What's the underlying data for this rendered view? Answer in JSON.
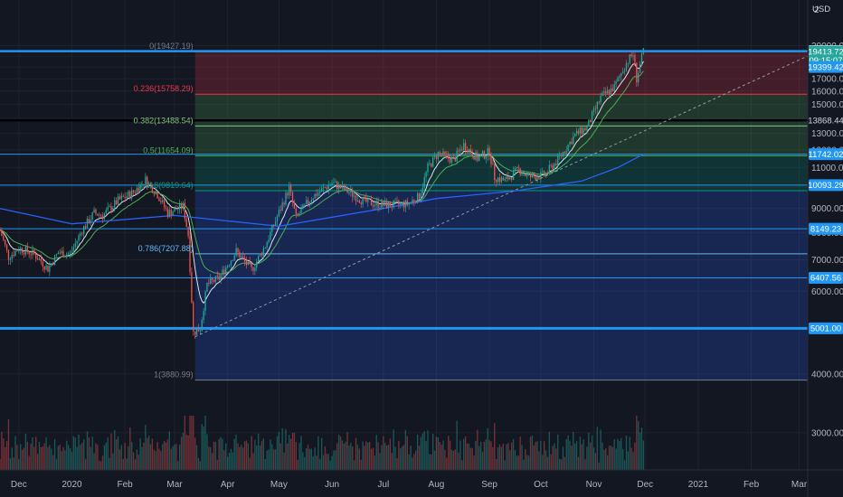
{
  "chart_data": {
    "type": "candlestick",
    "currency": "USD",
    "y_scale": "log",
    "ylim": [
      2500,
      25000
    ],
    "y_ticks": [
      3000,
      4000,
      5000,
      6000,
      7000,
      8000,
      9000,
      10000,
      11000,
      12000,
      13000,
      14000,
      15000,
      16000,
      17000,
      18000,
      19000,
      20000
    ],
    "y_tick_labels": [
      "3000.00",
      "4000.00",
      "5000.00",
      "6000.00",
      "7000.00",
      "8000.00",
      "9000.00",
      "10000.00",
      "11000.00",
      "12000.00",
      "13000.00",
      "14000.00",
      "15000.00",
      "16000.00",
      "17000.00",
      "18000.00",
      "19000.00",
      "20000.00"
    ],
    "top_tick_label": "2",
    "xlim": [
      "2019-11-20",
      "2021-03-06"
    ],
    "x_ticks": [
      {
        "date": "2019-12-01",
        "label": "Dec"
      },
      {
        "date": "2020-01-01",
        "label": "2020"
      },
      {
        "date": "2020-02-01",
        "label": "Feb"
      },
      {
        "date": "2020-03-01",
        "label": "Mar"
      },
      {
        "date": "2020-04-01",
        "label": "Apr"
      },
      {
        "date": "2020-05-01",
        "label": "May"
      },
      {
        "date": "2020-06-01",
        "label": "Jun"
      },
      {
        "date": "2020-07-01",
        "label": "Jul"
      },
      {
        "date": "2020-08-01",
        "label": "Aug"
      },
      {
        "date": "2020-09-01",
        "label": "Sep"
      },
      {
        "date": "2020-10-01",
        "label": "Oct"
      },
      {
        "date": "2020-11-01",
        "label": "Nov"
      },
      {
        "date": "2020-12-01",
        "label": "Dec"
      },
      {
        "date": "2021-01-01",
        "label": "2021"
      },
      {
        "date": "2021-02-01",
        "label": "Feb"
      },
      {
        "date": "2021-03-01",
        "label": "Mar"
      }
    ],
    "price_path": [
      {
        "date": "2019-11-20",
        "close": 8100
      },
      {
        "date": "2019-11-25",
        "close": 7100
      },
      {
        "date": "2019-12-01",
        "close": 7400
      },
      {
        "date": "2019-12-10",
        "close": 7200
      },
      {
        "date": "2019-12-18",
        "close": 6700
      },
      {
        "date": "2019-12-24",
        "close": 7250
      },
      {
        "date": "2019-12-31",
        "close": 7200
      },
      {
        "date": "2020-01-07",
        "close": 8100
      },
      {
        "date": "2020-01-14",
        "close": 8800
      },
      {
        "date": "2020-01-19",
        "close": 8700
      },
      {
        "date": "2020-01-28",
        "close": 9350
      },
      {
        "date": "2020-02-06",
        "close": 9750
      },
      {
        "date": "2020-02-13",
        "close": 10350
      },
      {
        "date": "2020-02-20",
        "close": 9650
      },
      {
        "date": "2020-02-26",
        "close": 8800
      },
      {
        "date": "2020-03-06",
        "close": 9100
      },
      {
        "date": "2020-03-09",
        "close": 7900
      },
      {
        "date": "2020-03-12",
        "close": 4900
      },
      {
        "date": "2020-03-16",
        "close": 5000
      },
      {
        "date": "2020-03-20",
        "close": 6200
      },
      {
        "date": "2020-03-27",
        "close": 6400
      },
      {
        "date": "2020-04-06",
        "close": 7300
      },
      {
        "date": "2020-04-15",
        "close": 6650
      },
      {
        "date": "2020-04-23",
        "close": 7500
      },
      {
        "date": "2020-04-30",
        "close": 8650
      },
      {
        "date": "2020-05-07",
        "close": 9950
      },
      {
        "date": "2020-05-11",
        "close": 8600
      },
      {
        "date": "2020-05-20",
        "close": 9500
      },
      {
        "date": "2020-06-01",
        "close": 10200
      },
      {
        "date": "2020-06-10",
        "close": 9800
      },
      {
        "date": "2020-06-20",
        "close": 9300
      },
      {
        "date": "2020-07-01",
        "close": 9150
      },
      {
        "date": "2020-07-15",
        "close": 9200
      },
      {
        "date": "2020-07-22",
        "close": 9550
      },
      {
        "date": "2020-07-27",
        "close": 11000
      },
      {
        "date": "2020-08-02",
        "close": 11800
      },
      {
        "date": "2020-08-11",
        "close": 11400
      },
      {
        "date": "2020-08-17",
        "close": 12300
      },
      {
        "date": "2020-08-25",
        "close": 11500
      },
      {
        "date": "2020-09-01",
        "close": 11900
      },
      {
        "date": "2020-09-04",
        "close": 10500
      },
      {
        "date": "2020-09-10",
        "close": 10300
      },
      {
        "date": "2020-09-18",
        "close": 10900
      },
      {
        "date": "2020-09-24",
        "close": 10500
      },
      {
        "date": "2020-10-03",
        "close": 10600
      },
      {
        "date": "2020-10-10",
        "close": 11300
      },
      {
        "date": "2020-10-21",
        "close": 12900
      },
      {
        "date": "2020-10-28",
        "close": 13400
      },
      {
        "date": "2020-11-05",
        "close": 15500
      },
      {
        "date": "2020-11-13",
        "close": 16300
      },
      {
        "date": "2020-11-18",
        "close": 17800
      },
      {
        "date": "2020-11-21",
        "close": 18600
      },
      {
        "date": "2020-11-24",
        "close": 19200
      },
      {
        "date": "2020-11-26",
        "close": 17000
      },
      {
        "date": "2020-11-28",
        "close": 18200
      },
      {
        "date": "2020-11-30",
        "close": 19413.72
      }
    ],
    "moving_average": {
      "color": "#2962ff",
      "points": [
        {
          "date": "2019-11-20",
          "value": 9000
        },
        {
          "date": "2020-01-01",
          "value": 8350
        },
        {
          "date": "2020-03-01",
          "value": 8700
        },
        {
          "date": "2020-05-01",
          "value": 8250
        },
        {
          "date": "2020-07-01",
          "value": 9000
        },
        {
          "date": "2020-08-01",
          "value": 9450
        },
        {
          "date": "2020-09-15",
          "value": 9800
        },
        {
          "date": "2020-10-25",
          "value": 10300
        },
        {
          "date": "2020-11-15",
          "value": 11000
        },
        {
          "date": "2020-11-30",
          "value": 11742.02
        }
      ]
    },
    "fibonacci": {
      "start_date": "2020-03-13",
      "end_date": "2021-03-06",
      "levels": [
        {
          "ratio": 0,
          "label": "0(19427.19)",
          "price": 19427.19,
          "color": "#787b86",
          "fill": "#f23645"
        },
        {
          "ratio": 0.236,
          "label": "0.236(15758.29)",
          "price": 15758.29,
          "color": "#f23645",
          "fill": "#4caf50"
        },
        {
          "ratio": 0.382,
          "label": "0.382(13488.54)",
          "price": 13488.54,
          "color": "#81c784",
          "fill": "#4caf50"
        },
        {
          "ratio": 0.5,
          "label": "0.5(11654.09)",
          "price": 11654.09,
          "color": "#4caf50",
          "fill": "#089981"
        },
        {
          "ratio": 0.618,
          "label": "0.618(9819.64)",
          "price": 9819.64,
          "color": "#089981",
          "fill": "#2962ff"
        },
        {
          "ratio": 0.786,
          "label": "0.786(7207.88)",
          "price": 7207.88,
          "color": "#64b5f6",
          "fill": "#2962ff"
        },
        {
          "ratio": 1,
          "label": "1(3880.99)",
          "price": 3880.99,
          "color": "#787b86",
          "fill": ""
        }
      ]
    },
    "horizontal_lines": [
      {
        "price": 19456.89,
        "color": "#2196f3",
        "width": 2.5
      },
      {
        "price": 13868.44,
        "color": "#000000",
        "width": 2.5
      },
      {
        "price": 11742.02,
        "color": "#2196f3",
        "width": 1
      },
      {
        "price": 10093.29,
        "color": "#2196f3",
        "width": 1
      },
      {
        "price": 8149.23,
        "color": "#2196f3",
        "width": 1
      },
      {
        "price": 6407.56,
        "color": "#2196f3",
        "width": 1
      },
      {
        "price": 5001.0,
        "color": "#2196f3",
        "width": 3
      }
    ],
    "price_tags": [
      {
        "price": 19456.89,
        "label": "19456.89",
        "bg": "#ffffff",
        "fg": "#131722"
      },
      {
        "price": 19413.72,
        "label": "19413.72",
        "bg": "#26a69a",
        "fg": "#ffffff"
      },
      {
        "price": 18600,
        "label": "09:15:07",
        "bg": "#26a69a",
        "fg": "#ffffff"
      },
      {
        "price": 18000,
        "label": "19399.42",
        "bg": "#2196f3",
        "fg": "#ffffff"
      },
      {
        "price": 13868.44,
        "label": "13868.44",
        "bg": "#131722",
        "fg": "#d1d4dc"
      },
      {
        "price": 11742.02,
        "label": "11742.02",
        "bg": "#2196f3",
        "fg": "#ffffff"
      },
      {
        "price": 10093.29,
        "label": "10093.29",
        "bg": "#2196f3",
        "fg": "#ffffff"
      },
      {
        "price": 8149.23,
        "label": "8149.23",
        "bg": "#2196f3",
        "fg": "#ffffff"
      },
      {
        "price": 6407.56,
        "label": "6407.56",
        "bg": "#2196f3",
        "fg": "#ffffff"
      },
      {
        "price": 5001.0,
        "label": "5001.00",
        "bg": "#2196f3",
        "fg": "#ffffff"
      }
    ],
    "trendline": {
      "from": {
        "date": "2020-03-13",
        "price": 4800
      },
      "to": {
        "date": "2021-03-06",
        "price": 19000
      },
      "style": "dashed"
    },
    "colors": {
      "background": "#131722",
      "up": "#26a69a",
      "down": "#ef5350",
      "grid": "#1e222d",
      "text": "#b2b5be"
    }
  }
}
